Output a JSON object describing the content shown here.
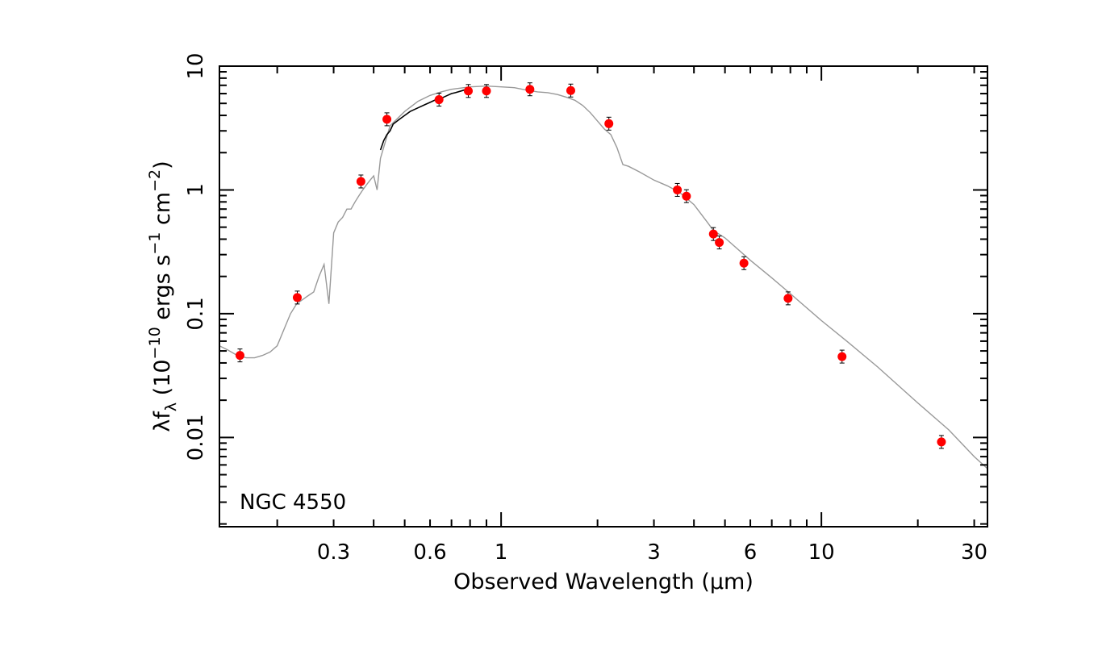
{
  "chart_data": {
    "type": "scatter",
    "title": "",
    "annotation": "NGC 4550",
    "xlabel": "Observed Wavelength (μm)",
    "ylabel": {
      "prefix": "λf",
      "sub": "λ",
      "open": " (10",
      "exp1": "−10",
      "mid": " ergs s",
      "exp2": "−1",
      "mid2": " cm",
      "exp3": "−2",
      "close": ")"
    },
    "xscale": "log",
    "yscale": "log",
    "xlim": [
      0.132,
      33
    ],
    "ylim": [
      0.0019,
      10
    ],
    "x_ticks": [
      {
        "value": 0.3,
        "label": "0.3"
      },
      {
        "value": 0.6,
        "label": "0.6"
      },
      {
        "value": 1,
        "label": "1"
      },
      {
        "value": 3,
        "label": "3"
      },
      {
        "value": 6,
        "label": "6"
      },
      {
        "value": 10,
        "label": "10"
      },
      {
        "value": 30,
        "label": "30"
      }
    ],
    "y_ticks": [
      {
        "value": 0.01,
        "label": "0.01"
      },
      {
        "value": 0.1,
        "label": "0.1"
      },
      {
        "value": 1,
        "label": "1"
      },
      {
        "value": 10,
        "label": "10"
      }
    ],
    "grid": false,
    "colors": {
      "points": "#ff0000",
      "model": "#999999",
      "spectrum": "#000000",
      "axes": "#000000"
    },
    "series": [
      {
        "kind": "points",
        "x": [
          0.153,
          0.231,
          0.365,
          0.44,
          0.64,
          0.79,
          0.9,
          1.23,
          1.65,
          2.17,
          3.55,
          3.79,
          4.6,
          4.8,
          5.73,
          7.87,
          11.6,
          23.7
        ],
        "y": [
          0.046,
          0.135,
          1.17,
          3.72,
          5.36,
          6.3,
          6.3,
          6.5,
          6.35,
          3.43,
          1.0,
          0.89,
          0.44,
          0.376,
          0.256,
          0.133,
          0.045,
          0.0092
        ]
      },
      {
        "kind": "model",
        "x": [
          0.132,
          0.14,
          0.15,
          0.16,
          0.17,
          0.18,
          0.19,
          0.2,
          0.21,
          0.22,
          0.23,
          0.24,
          0.25,
          0.26,
          0.27,
          0.28,
          0.29,
          0.3,
          0.31,
          0.32,
          0.33,
          0.34,
          0.35,
          0.36,
          0.37,
          0.38,
          0.39,
          0.4,
          0.41,
          0.42,
          0.45,
          0.5,
          0.55,
          0.6,
          0.65,
          0.7,
          0.8,
          0.9,
          1.0,
          1.1,
          1.2,
          1.3,
          1.4,
          1.5,
          1.6,
          1.7,
          1.8,
          1.9,
          2.0,
          2.1,
          2.2,
          2.3,
          2.4,
          2.5,
          2.7,
          3.0,
          3.3,
          3.6,
          4.0,
          4.4,
          4.6,
          5.0,
          6.0,
          7.0,
          8.0,
          10.0,
          12.0,
          15.0,
          20.0,
          25.0,
          30.0,
          33.0
        ],
        "y": [
          0.055,
          0.051,
          0.046,
          0.044,
          0.044,
          0.046,
          0.049,
          0.055,
          0.075,
          0.1,
          0.12,
          0.13,
          0.14,
          0.15,
          0.2,
          0.25,
          0.12,
          0.45,
          0.55,
          0.6,
          0.7,
          0.7,
          0.8,
          0.9,
          1.0,
          1.1,
          1.2,
          1.3,
          1.0,
          1.8,
          3.3,
          4.3,
          5.2,
          5.8,
          6.2,
          6.5,
          6.8,
          6.9,
          6.8,
          6.7,
          6.4,
          6.2,
          6.1,
          5.9,
          5.6,
          5.3,
          4.8,
          4.2,
          3.6,
          3.1,
          2.8,
          2.2,
          1.6,
          1.55,
          1.4,
          1.2,
          1.08,
          0.96,
          0.76,
          0.55,
          0.47,
          0.41,
          0.27,
          0.195,
          0.145,
          0.088,
          0.06,
          0.037,
          0.019,
          0.0115,
          0.007,
          0.0056
        ]
      },
      {
        "kind": "spectrum",
        "x": [
          0.42,
          0.43,
          0.44,
          0.45,
          0.46,
          0.48,
          0.5,
          0.52,
          0.55,
          0.58,
          0.6,
          0.62,
          0.65,
          0.68,
          0.7,
          0.72,
          0.75,
          0.78
        ],
        "y": [
          2.1,
          2.5,
          2.8,
          3.0,
          3.4,
          3.7,
          4.0,
          4.3,
          4.6,
          4.9,
          5.1,
          5.3,
          5.5,
          5.8,
          6.0,
          6.1,
          6.3,
          6.5
        ]
      }
    ]
  }
}
